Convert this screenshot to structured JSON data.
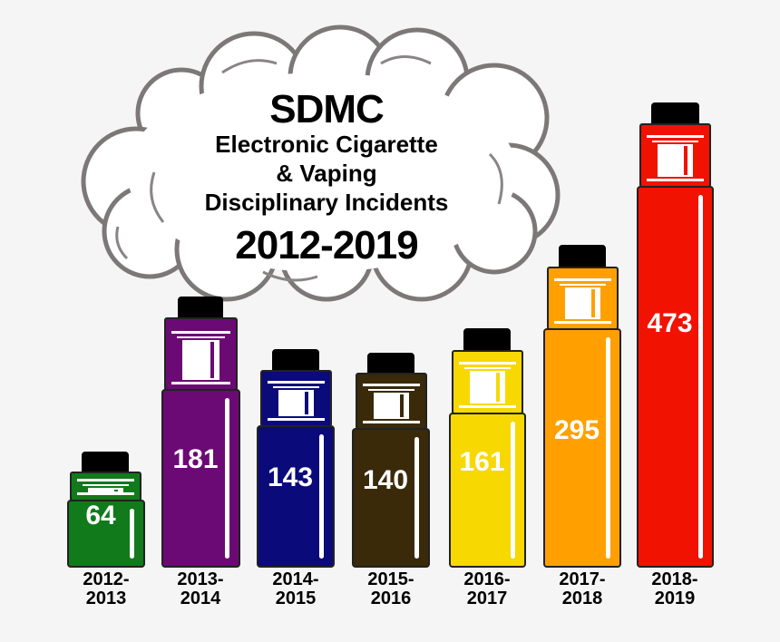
{
  "title": {
    "main": "SDMC",
    "line1": "Electronic Cigarette",
    "line2": "& Vaping",
    "line3": "Disciplinary Incidents",
    "years": "2012-2019"
  },
  "icons": {
    "cloud": "smoke-cloud-icon",
    "bar": "vape-mod-icon"
  },
  "bars": [
    {
      "label_top": "2012-",
      "label_bottom": "2013",
      "value": "64",
      "color": "#117a1b"
    },
    {
      "label_top": "2013-",
      "label_bottom": "2014",
      "value": "181",
      "color": "#6b0a74"
    },
    {
      "label_top": "2014-",
      "label_bottom": "2015",
      "value": "143",
      "color": "#0b0a7a"
    },
    {
      "label_top": "2015-",
      "label_bottom": "2016",
      "value": "140",
      "color": "#3a2a0a"
    },
    {
      "label_top": "2016-",
      "label_bottom": "2017",
      "value": "161",
      "color": "#f7d800"
    },
    {
      "label_top": "2017-",
      "label_bottom": "2018",
      "value": "295",
      "color": "#ffa000"
    },
    {
      "label_top": "2018-",
      "label_bottom": "2019",
      "value": "473",
      "color": "#f21202"
    }
  ],
  "chart_data": {
    "type": "bar",
    "title": "SDMC Electronic Cigarette & Vaping Disciplinary Incidents 2012-2019",
    "categories": [
      "2012-2013",
      "2013-2014",
      "2014-2015",
      "2015-2016",
      "2016-2017",
      "2017-2018",
      "2018-2019"
    ],
    "values": [
      64,
      181,
      143,
      140,
      161,
      295,
      473
    ],
    "xlabel": "",
    "ylabel": "",
    "grid": false,
    "legend": "none",
    "colors": [
      "#117a1b",
      "#6b0a74",
      "#0b0a7a",
      "#3a2a0a",
      "#f7d800",
      "#ffa000",
      "#f21202"
    ]
  }
}
